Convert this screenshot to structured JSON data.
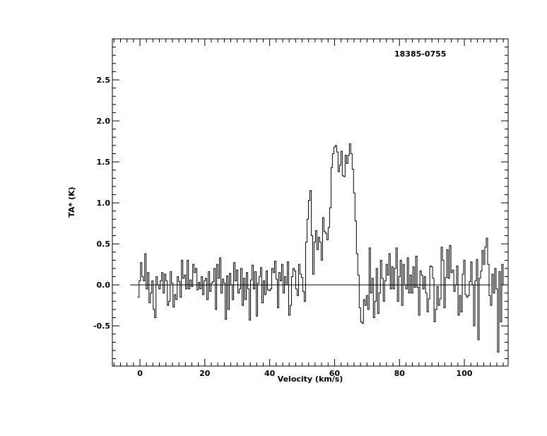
{
  "chart_data": {
    "type": "line",
    "title": "18385-0755",
    "xlabel": "Velocity (km/s)",
    "ylabel": "TA* (K)",
    "xlim": [
      -8.5,
      113.5
    ],
    "ylim": [
      -0.99,
      3.0
    ],
    "x_ticks": [
      0,
      20,
      40,
      60,
      80,
      100
    ],
    "x_tick_labels": [
      "0",
      "20",
      "40",
      "60",
      "80",
      "100"
    ],
    "y_ticks": [
      -0.5,
      0.0,
      0.5,
      1.0,
      1.5,
      2.0,
      2.5
    ],
    "y_tick_labels": [
      "-0.5",
      "0.0",
      "0.5",
      "1.0",
      "1.5",
      "2.0",
      "2.5"
    ],
    "baseline": 0.0,
    "baseline_range": [
      -3,
      108
    ],
    "grid": false,
    "line_color": "#000000",
    "series": [
      {
        "x_start": -0.7,
        "x_step": 0.435,
        "values": [
          -0.15,
          0.05,
          0.27,
          0.1,
          0.05,
          0.38,
          -0.05,
          0.15,
          -0.22,
          -0.1,
          0.05,
          -0.3,
          -0.4,
          0.1,
          0.0,
          -0.05,
          0.05,
          0.15,
          -0.1,
          0.13,
          0.05,
          -0.25,
          -0.2,
          0.16,
          0.02,
          -0.27,
          -0.12,
          -0.18,
          0.1,
          0.04,
          -0.15,
          0.3,
          0.08,
          0.12,
          -0.05,
          0.3,
          -0.05,
          0.06,
          -0.02,
          0.25,
          0.15,
          0.2,
          -0.06,
          0.03,
          -0.05,
          0.1,
          -0.12,
          0.05,
          0.08,
          -0.18,
          0.16,
          -0.08,
          0.02,
          0.04,
          0.2,
          -0.3,
          0.25,
          0.08,
          0.33,
          -0.1,
          0.07,
          0.02,
          -0.42,
          0.11,
          -0.3,
          0.14,
          0.0,
          -0.18,
          0.27,
          0.05,
          0.18,
          -0.1,
          -0.05,
          0.2,
          -0.25,
          0.08,
          -0.18,
          0.15,
          -0.05,
          -0.43,
          0.06,
          0.24,
          -0.05,
          0.16,
          -0.38,
          0.02,
          0.1,
          0.21,
          -0.22,
          0.05,
          -0.12,
          0.17,
          -0.06,
          -0.07,
          -0.05,
          0.2,
          0.15,
          0.29,
          0.07,
          -0.28,
          0.15,
          0.05,
          0.25,
          -0.1,
          0.1,
          0.0,
          0.28,
          -0.37,
          -0.25,
          0.1,
          0.2,
          0.17,
          -0.05,
          -0.13,
          0.25,
          0.13,
          0.09,
          -0.08,
          -0.2,
          0.52,
          0.8,
          1.03,
          1.15,
          0.6,
          0.13,
          0.52,
          0.66,
          0.43,
          0.58,
          0.52,
          0.3,
          0.82,
          0.65,
          0.63,
          0.55,
          0.7,
          0.94,
          1.43,
          1.6,
          1.68,
          1.7,
          1.62,
          1.38,
          1.46,
          1.63,
          1.33,
          1.32,
          1.58,
          1.48,
          1.58,
          1.72,
          1.6,
          1.41,
          1.12,
          0.78,
          0.38,
          0.12,
          -0.28,
          -0.45,
          -0.47,
          -0.18,
          -0.25,
          -0.13,
          -0.3,
          0.45,
          -0.1,
          0.08,
          -0.4,
          -0.2,
          0.2,
          -0.35,
          -0.1,
          0.3,
          0.08,
          -0.2,
          0.05,
          0.25,
          0.12,
          0.38,
          -0.05,
          0.22,
          -0.05,
          0.2,
          0.45,
          -0.2,
          0.1,
          0.3,
          -0.25,
          0.25,
          0.0,
          -0.05,
          0.33,
          -0.1,
          0.12,
          -0.1,
          0.22,
          -0.03,
          0.35,
          -0.03,
          -0.37,
          0.17,
          0.12,
          -0.05,
          0.1,
          -0.1,
          -0.33,
          -0.17,
          0.23,
          0.22,
          0.08,
          -0.45,
          -0.3,
          -0.02,
          -0.25,
          -0.17,
          0.46,
          0.3,
          -0.28,
          0.09,
          0.43,
          0.08,
          0.48,
          0.15,
          0.18,
          -0.08,
          0.0,
          0.23,
          -0.37,
          -0.13,
          -0.33,
          0.13,
          0.3,
          -0.12,
          -0.15,
          -0.13,
          0.04,
          0.28,
          0.0,
          -0.5,
          0.05,
          0.31,
          -0.67,
          0.08,
          0.17,
          0.42,
          0.25,
          0.46,
          0.57,
          0.25,
          -0.13,
          -0.25,
          0.13,
          -0.1,
          0.2,
          -0.05,
          -0.82,
          0.16,
          -0.45,
          0.25,
          0.0
        ]
      }
    ]
  }
}
